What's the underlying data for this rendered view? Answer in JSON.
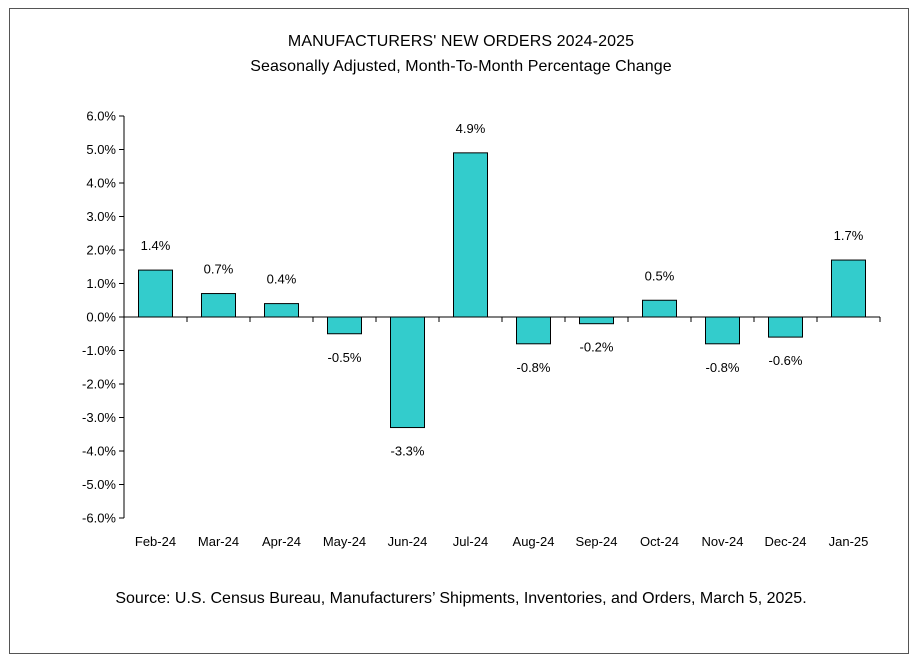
{
  "chart_data": {
    "type": "bar",
    "title": "MANUFACTURERS' NEW ORDERS 2024-2025",
    "subtitle": "Seasonally Adjusted,  Month-To-Month Percentage Change",
    "categories": [
      "Feb-24",
      "Mar-24",
      "Apr-24",
      "May-24",
      "Jun-24",
      "Jul-24",
      "Aug-24",
      "Sep-24",
      "Oct-24",
      "Nov-24",
      "Dec-24",
      "Jan-25"
    ],
    "values": [
      1.4,
      0.7,
      0.4,
      -0.5,
      -3.3,
      4.9,
      -0.8,
      -0.2,
      0.5,
      -0.8,
      -0.6,
      1.7
    ],
    "data_labels": [
      "1.4%",
      "0.7%",
      "0.4%",
      "-0.5%",
      "-3.3%",
      "4.9%",
      "-0.8%",
      "-0.2%",
      "0.5%",
      "-0.8%",
      "-0.6%",
      "1.7%"
    ],
    "yticks": [
      6,
      5,
      4,
      3,
      2,
      1,
      0,
      -1,
      -2,
      -3,
      -4,
      -5,
      -6
    ],
    "ytick_labels": [
      "6.0%",
      "5.0%",
      "4.0%",
      "3.0%",
      "2.0%",
      "1.0%",
      "0.0%",
      "-1.0%",
      "-2.0%",
      "-3.0%",
      "-4.0%",
      "-5.0%",
      "-6.0%"
    ],
    "ylim": [
      -6,
      6
    ],
    "xlabel": "",
    "ylabel": "",
    "grid": false,
    "bar_color": "#33CCCC",
    "source": "Source: U.S. Census Bureau, Manufacturers’ Shipments, Inventories, and Orders, March 5, 2025."
  }
}
